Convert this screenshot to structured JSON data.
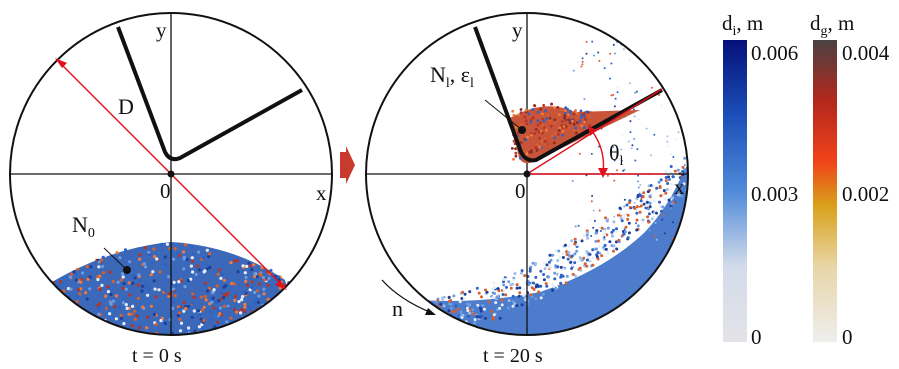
{
  "panels": [
    {
      "caption": "t = 0 s",
      "axis_x": "x",
      "axis_y": "y",
      "origin": "0",
      "diameter_label": "D",
      "particle_count": {
        "main": "N",
        "sub": "0"
      }
    },
    {
      "caption": "t = 20 s",
      "axis_x": "x",
      "axis_y": "y",
      "origin": "0",
      "lifted": {
        "main": "N",
        "sub": "l",
        "sep": ", ",
        "eps_main": "ε",
        "eps_sub": "l"
      },
      "angle": {
        "main": "θ",
        "sub": "l"
      },
      "rotation": "n"
    }
  ],
  "colorbars": [
    {
      "symbol": "d",
      "sub": "i",
      "unit": ", m",
      "max": "0.006",
      "mid": "0.003",
      "min": "0",
      "stops": [
        "#e3e3e7",
        "#d3dbea",
        "#4f8ad9",
        "#1c4fb8",
        "#05107a"
      ]
    },
    {
      "symbol": "d",
      "sub": "g",
      "unit": ", m",
      "max": "0.004",
      "mid": "0.002",
      "min": "0",
      "stops": [
        "#eeeeee",
        "#e8d6a8",
        "#d8a21b",
        "#f0421a",
        "#b3271c",
        "#4a4242"
      ]
    }
  ],
  "colors": {
    "line_red": "#e0101c",
    "arrow_red": "#c93a2e",
    "particle_blue": "#2d63c4",
    "particle_orange": "#d8602e"
  }
}
